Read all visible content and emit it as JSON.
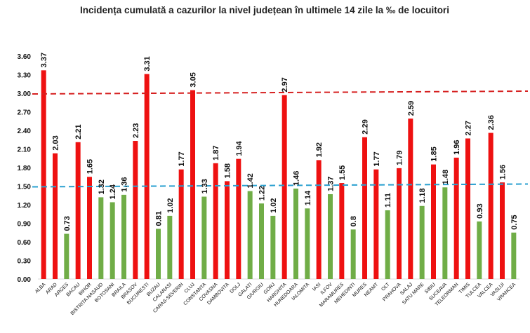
{
  "chart_data": {
    "type": "bar",
    "title": "Incidența cumulată a cazurilor la nivel județean în ultimele 14 zile la ‰ de locuitori",
    "xlabel": "",
    "ylabel": "",
    "ylim": [
      0,
      3.6
    ],
    "yticks": [
      "0.00",
      "0.30",
      "0.60",
      "0.90",
      "1.20",
      "1.50",
      "1.80",
      "2.10",
      "2.40",
      "2.70",
      "3.00",
      "3.30",
      "3.60"
    ],
    "grid": false,
    "categories": [
      "ALBA",
      "ARAD",
      "ARGES",
      "BACAU",
      "BIHOR",
      "BISTRITA NASAUD",
      "BOTOSANI",
      "BRAILA",
      "BRASOV",
      "BUCURESTI",
      "BUZAU",
      "CALARASI",
      "CARAS-SEVERIN",
      "CLUJ",
      "CONSTANTA",
      "COVASNA",
      "DAMBOVITA",
      "DOLJ",
      "GALATI",
      "GIURGIU",
      "GORJ",
      "HARGHITA",
      "HUNEDOARA",
      "IALOMITA",
      "IASI",
      "ILFOV",
      "MARAMURES",
      "MEHEDINTI",
      "MURES",
      "NEAMT",
      "OLT",
      "PRAHOVA",
      "SALAJ",
      "SATU MARE",
      "SIBIU",
      "SUCEAVA",
      "TELEORMAN",
      "TIMIS",
      "TULCEA",
      "VALCEA",
      "VASLUI",
      "VRANCEA"
    ],
    "values": [
      3.37,
      2.03,
      0.73,
      2.21,
      1.65,
      1.32,
      1.24,
      1.36,
      2.23,
      3.31,
      0.81,
      1.02,
      1.77,
      3.05,
      1.33,
      1.87,
      1.58,
      1.94,
      1.42,
      1.22,
      1.02,
      2.97,
      1.46,
      1.14,
      1.92,
      1.37,
      1.55,
      0.8,
      2.29,
      1.77,
      1.11,
      1.79,
      2.59,
      1.18,
      1.85,
      1.48,
      1.96,
      2.27,
      0.93,
      2.36,
      1.56,
      0.75
    ],
    "labels": [
      "3.37",
      "2.03",
      "0.73",
      "2.21",
      "1.65",
      "1.32",
      "1.24",
      "1.36",
      "2.23",
      "3.31",
      "0.81",
      "1.02",
      "1.77",
      "3.05",
      "1.33",
      "1.87",
      "1.58",
      "1.94",
      "1.42",
      "1.22",
      "1.02",
      "2.97",
      "1.46",
      "1.14",
      "1.92",
      "1.37",
      "1.55",
      "0.8",
      "2.29",
      "1.77",
      "1.11",
      "1.79",
      "2.59",
      "1.18",
      "1.85",
      "1.48",
      "1.96",
      "2.27",
      "0.93",
      "2.36",
      "1.56",
      "0.75"
    ],
    "bar_colors": {
      "high": "#ee1111",
      "low": "#70ad47"
    },
    "color_threshold": 1.5,
    "reference_lines": [
      {
        "value": 3.0,
        "color": "#d62020",
        "style": "dashed"
      },
      {
        "value": 1.5,
        "color": "#2aa0d0",
        "style": "dashed"
      }
    ]
  }
}
